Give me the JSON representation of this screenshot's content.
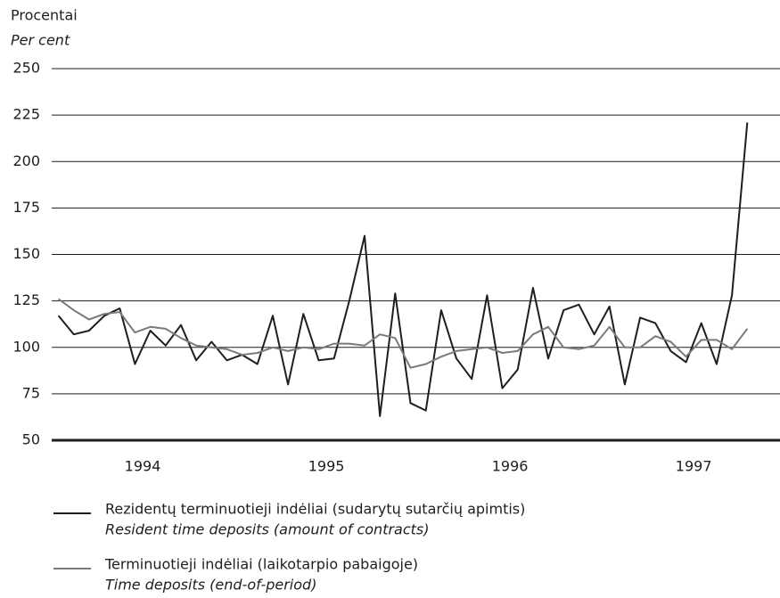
{
  "chart_data": {
    "type": "line",
    "ylabel": "Procentai",
    "ylabel_en": "Per cent",
    "categories": [
      null,
      null,
      null,
      null,
      null,
      "1994",
      null,
      null,
      null,
      null,
      null,
      null,
      null,
      null,
      null,
      null,
      null,
      "1995",
      null,
      null,
      null,
      null,
      null,
      null,
      null,
      null,
      null,
      null,
      null,
      "1996",
      null,
      null,
      null,
      null,
      null,
      null,
      null,
      null,
      null,
      null,
      null,
      "1997",
      null,
      null,
      null,
      null
    ],
    "series": [
      {
        "name": "Rezidentų terminuotieji indėliai (sudarytų sutarčių apimtis)",
        "name_en": "Resident time deposits (amount of contracts)",
        "color": "#1e1e1e",
        "values": [
          117,
          107,
          109,
          117,
          121,
          91,
          109,
          101,
          112,
          93,
          103,
          93,
          96,
          91,
          117,
          80,
          118,
          93,
          94,
          125,
          160,
          63,
          129,
          70,
          66,
          120,
          94,
          83,
          128,
          78,
          88,
          132,
          94,
          120,
          123,
          107,
          122,
          80,
          116,
          113,
          98,
          92,
          113,
          91,
          128,
          221
        ]
      },
      {
        "name": "Terminuotieji indėliai (laikotarpio pabaigoje)",
        "name_en": "Time deposits (end-of-period)",
        "color": "#7a7a7a",
        "values": [
          126,
          120,
          115,
          118,
          119,
          108,
          111,
          110,
          105,
          101,
          100,
          99,
          96,
          97,
          100,
          98,
          100,
          99,
          102,
          102,
          101,
          107,
          105,
          89,
          91,
          95,
          98,
          99,
          100,
          97,
          98,
          107,
          111,
          100,
          99,
          101,
          111,
          100,
          100,
          106,
          103,
          95,
          104,
          104,
          99,
          110
        ]
      }
    ],
    "ylim": [
      50,
      250
    ],
    "yticks": [
      50,
      75,
      100,
      125,
      150,
      175,
      200,
      225,
      250
    ],
    "grid": true
  }
}
